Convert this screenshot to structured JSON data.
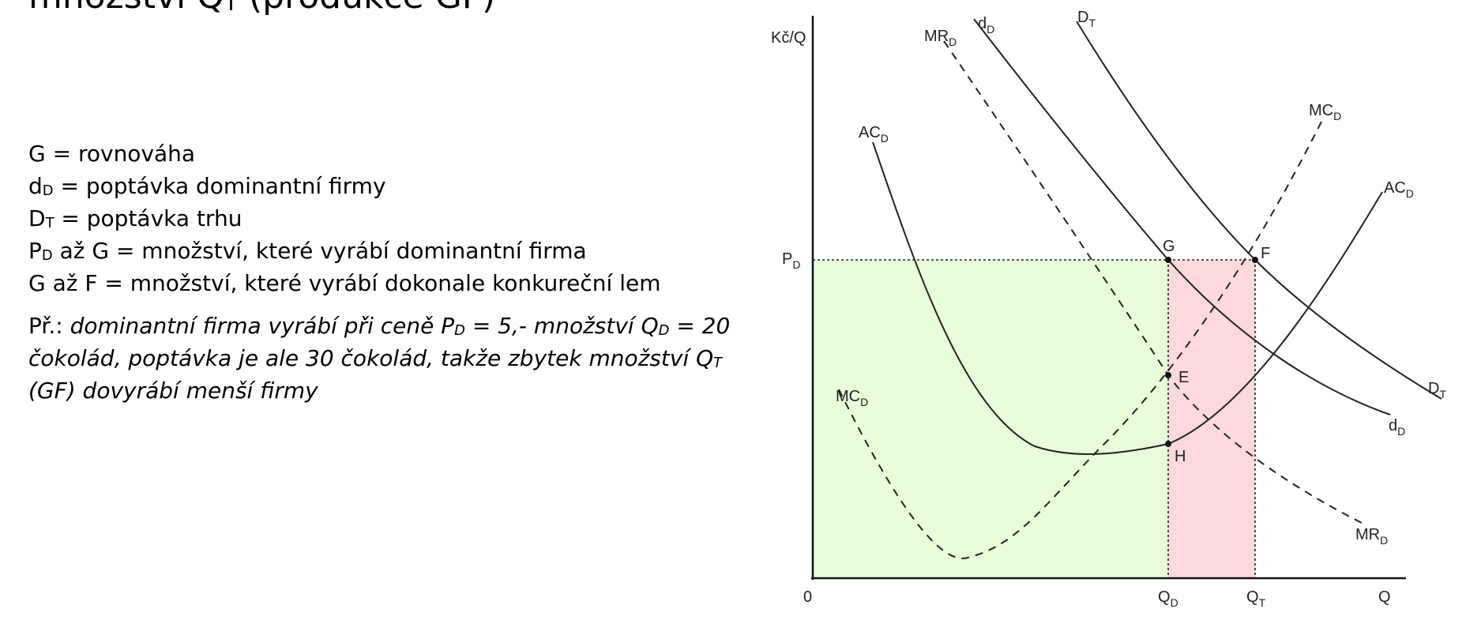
{
  "title": {
    "pre": "množství Q",
    "sub": "T",
    "post": " (produkce GF)"
  },
  "legend": [
    {
      "id": "g",
      "pre": "G",
      "sub": "",
      "post": " = rovnováha"
    },
    {
      "id": "dd",
      "pre": "d",
      "sub": "D",
      "post": " = poptávka dominantní firmy"
    },
    {
      "id": "dt",
      "pre": "D",
      "sub": "T",
      "post": " = poptávka trhu"
    },
    {
      "id": "pd",
      "pre": "P",
      "sub": "D",
      "post": " až G = množství, které vyrábí dominantní firma"
    },
    {
      "id": "gf",
      "pre": "G až F",
      "sub": "",
      "post": " = množství, které vyrábí dokonale konkureční lem"
    }
  ],
  "example": {
    "label": "Př.: ",
    "t1": "dominantní firma vyrábí při ceně P",
    "s1": "D",
    "t2": " = 5,- množství Q",
    "s2": "D",
    "t3": " = 20 čokolád, poptávka je ale 30 čokolád, takže zbytek množství Q",
    "s3": "T",
    "t4": " (GF) dovyrábí menší firmy"
  },
  "diagram": {
    "colors": {
      "dominant_area": "#e8fdd9",
      "fringe_area": "#ffd9dc",
      "curve": "#222222",
      "axis": "#111111"
    },
    "axis_labels": {
      "y": "Kč/Q",
      "x": "Q",
      "origin": "0",
      "price": {
        "base": "P",
        "sub": "D"
      },
      "qd": {
        "base": "Q",
        "sub": "D"
      },
      "qt": {
        "base": "Q",
        "sub": "T"
      }
    },
    "curve_labels": {
      "mr_top": {
        "base": "MR",
        "sub": "D"
      },
      "dd_top": {
        "base": "d",
        "sub": "D"
      },
      "dt_top": {
        "base": "D",
        "sub": "T"
      },
      "mc_top": {
        "base": "MC",
        "sub": "D"
      },
      "ac_right": {
        "base": "AC",
        "sub": "D"
      },
      "ac_left": {
        "base": "AC",
        "sub": "D"
      },
      "mc_left": {
        "base": "MC",
        "sub": "D"
      },
      "dt_right": {
        "base": "D",
        "sub": "T"
      },
      "dd_right": {
        "base": "d",
        "sub": "D"
      },
      "mr_bottom": {
        "base": "MR",
        "sub": "D"
      }
    },
    "points": {
      "g": "G",
      "f": "F",
      "e": "E",
      "h": "H"
    }
  }
}
